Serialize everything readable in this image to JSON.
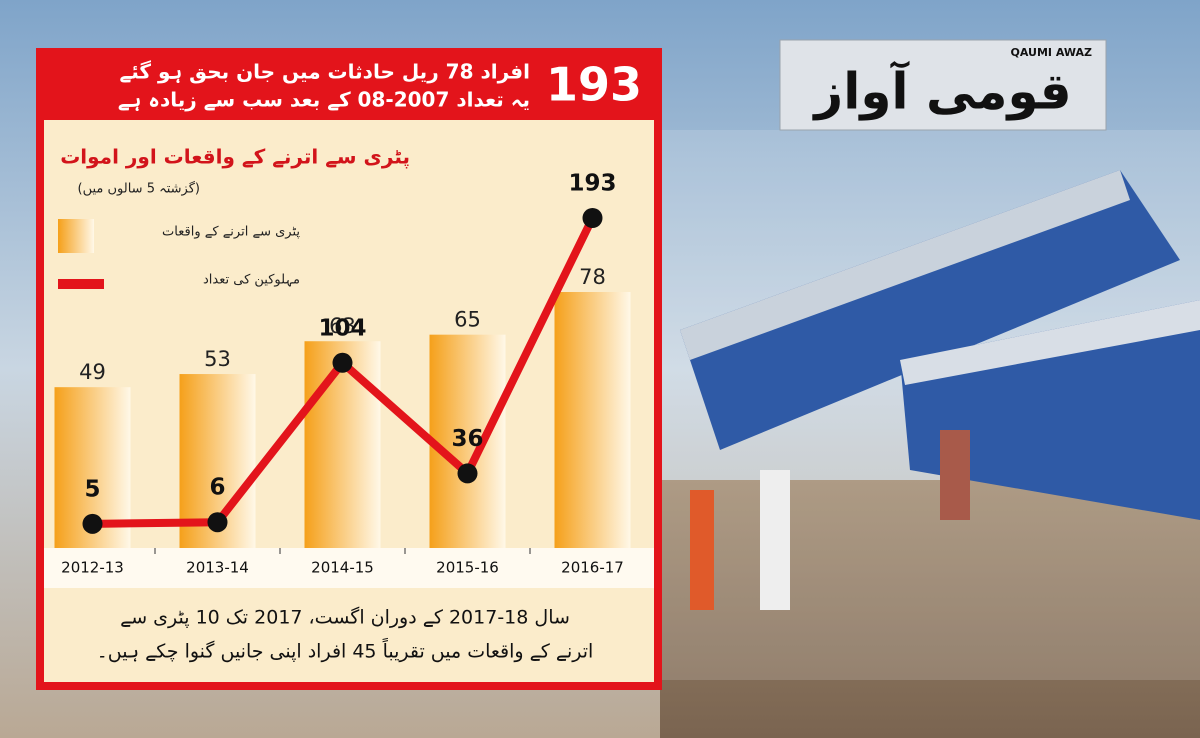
{
  "headline": {
    "number": "193",
    "line1": "افراد 78 ریل حادثات میں جان بحق ہو گئے",
    "line2": "یہ تعداد 2007-08 کے بعد سب سے زیادہ ہے"
  },
  "logo": {
    "latin": "QAUMI AWAZ",
    "urdu": "قومی آواز"
  },
  "chart_data": {
    "type": "combo",
    "title": "پٹری سے اترنے کے واقعات اور اموات",
    "subtitle": "(گزشتہ 5 سالوں میں)",
    "categories": [
      "2012-13",
      "2013-14",
      "2014-15",
      "2015-16",
      "2016-17"
    ],
    "series": [
      {
        "name": "پٹری سے اترنے کے واقعات",
        "color": "#f5a01a",
        "mark": "bar",
        "values": [
          49,
          53,
          63,
          65,
          78
        ]
      },
      {
        "name": "مہلوکین کی تعداد",
        "color": "#e3141b",
        "mark": "line",
        "values": [
          5,
          6,
          104,
          36,
          193
        ]
      }
    ]
  },
  "footnote": {
    "line1": "سال 18-2017 کے دوران اگست، 2017 تک 10 پٹری سے",
    "line2": "اترنے کے واقعات میں تقریباً 45 افراد اپنی جانیں گنوا چکے ہیں۔"
  }
}
